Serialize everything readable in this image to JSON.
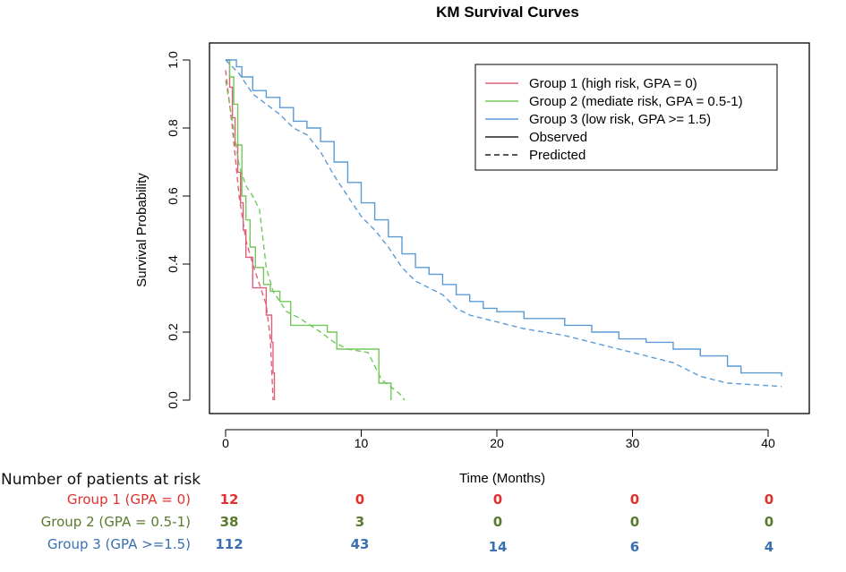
{
  "chart_data": {
    "type": "line",
    "title": "KM Survival Curves",
    "xlabel": "Time (Months)",
    "ylabel": "Survival Probability",
    "xlim": [
      0,
      42
    ],
    "ylim": [
      0,
      1.0
    ],
    "x_ticks": [
      0,
      10,
      20,
      30,
      40
    ],
    "y_ticks": [
      0.0,
      0.2,
      0.4,
      0.6,
      0.8,
      1.0
    ],
    "x_tick_labels": [
      "0",
      "10",
      "20",
      "30",
      "40"
    ],
    "y_tick_labels": [
      "0.0",
      "0.2",
      "0.4",
      "0.6",
      "0.8",
      "1.0"
    ],
    "legend": {
      "position": "top-right",
      "entries": [
        {
          "label": "Group 1 (high risk, GPA = 0)",
          "style": "solid",
          "color": "#e0607a"
        },
        {
          "label": "Group 2 (mediate risk, GPA = 0.5-1)",
          "style": "solid",
          "color": "#72c85a"
        },
        {
          "label": "Group 3 (low risk, GPA >= 1.5)",
          "style": "solid",
          "color": "#5b9bd5"
        },
        {
          "label": "Observed",
          "style": "solid",
          "color": "#222222"
        },
        {
          "label": "Predicted",
          "style": "dashed",
          "color": "#222222"
        }
      ]
    },
    "series": [
      {
        "name": "Group 1 Observed",
        "group": 1,
        "kind": "observed",
        "color": "#e0607a",
        "step": true,
        "points": [
          [
            0,
            1.0
          ],
          [
            0.3,
            0.92
          ],
          [
            0.5,
            0.83
          ],
          [
            0.7,
            0.75
          ],
          [
            0.9,
            0.67
          ],
          [
            1.1,
            0.58
          ],
          [
            1.3,
            0.5
          ],
          [
            1.5,
            0.42
          ],
          [
            2.0,
            0.33
          ],
          [
            3.0,
            0.25
          ],
          [
            3.4,
            0.17
          ],
          [
            3.5,
            0.08
          ],
          [
            3.6,
            0.0
          ]
        ]
      },
      {
        "name": "Group 1 Predicted",
        "group": 1,
        "kind": "predicted",
        "color": "#e0607a",
        "step": false,
        "points": [
          [
            0,
            0.97
          ],
          [
            0.5,
            0.8
          ],
          [
            1.0,
            0.6
          ],
          [
            1.5,
            0.47
          ],
          [
            2.0,
            0.4
          ],
          [
            2.5,
            0.34
          ],
          [
            3.0,
            0.28
          ],
          [
            3.3,
            0.18
          ],
          [
            3.5,
            0.0
          ]
        ]
      },
      {
        "name": "Group 2 Observed",
        "group": 2,
        "kind": "observed",
        "color": "#72c85a",
        "step": true,
        "points": [
          [
            0,
            1.0
          ],
          [
            0.3,
            0.95
          ],
          [
            0.6,
            0.87
          ],
          [
            0.9,
            0.75
          ],
          [
            1.2,
            0.6
          ],
          [
            1.5,
            0.53
          ],
          [
            1.8,
            0.45
          ],
          [
            2.2,
            0.39
          ],
          [
            2.8,
            0.34
          ],
          [
            3.3,
            0.32
          ],
          [
            4.0,
            0.29
          ],
          [
            4.8,
            0.22
          ],
          [
            7.5,
            0.2
          ],
          [
            8.2,
            0.15
          ],
          [
            11.3,
            0.05
          ],
          [
            12.2,
            0.0
          ]
        ]
      },
      {
        "name": "Group 2 Predicted",
        "group": 2,
        "kind": "predicted",
        "color": "#72c85a",
        "step": false,
        "points": [
          [
            0,
            0.94
          ],
          [
            0.5,
            0.82
          ],
          [
            1.0,
            0.69
          ],
          [
            1.5,
            0.63
          ],
          [
            2.0,
            0.6
          ],
          [
            2.5,
            0.56
          ],
          [
            3.0,
            0.39
          ],
          [
            3.5,
            0.32
          ],
          [
            4.5,
            0.26
          ],
          [
            5.5,
            0.24
          ],
          [
            7.0,
            0.2
          ],
          [
            8.0,
            0.17
          ],
          [
            9.0,
            0.15
          ],
          [
            10.5,
            0.14
          ],
          [
            11.5,
            0.06
          ],
          [
            12.8,
            0.02
          ],
          [
            13.2,
            0.0
          ]
        ]
      },
      {
        "name": "Group 3 Observed",
        "group": 3,
        "kind": "observed",
        "color": "#5b9bd5",
        "step": true,
        "points": [
          [
            0,
            1.0
          ],
          [
            0.8,
            0.98
          ],
          [
            1.2,
            0.95
          ],
          [
            2.0,
            0.91
          ],
          [
            3.0,
            0.89
          ],
          [
            4.0,
            0.86
          ],
          [
            5.0,
            0.82
          ],
          [
            6.0,
            0.8
          ],
          [
            7.0,
            0.76
          ],
          [
            8.0,
            0.7
          ],
          [
            9.0,
            0.64
          ],
          [
            10.0,
            0.58
          ],
          [
            11.0,
            0.53
          ],
          [
            12.0,
            0.48
          ],
          [
            13.0,
            0.43
          ],
          [
            14.0,
            0.39
          ],
          [
            15.0,
            0.37
          ],
          [
            16.0,
            0.34
          ],
          [
            17.0,
            0.31
          ],
          [
            18.0,
            0.29
          ],
          [
            19.0,
            0.27
          ],
          [
            20.0,
            0.26
          ],
          [
            22.0,
            0.24
          ],
          [
            25.0,
            0.22
          ],
          [
            27.0,
            0.2
          ],
          [
            29.0,
            0.18
          ],
          [
            31.0,
            0.17
          ],
          [
            33.0,
            0.15
          ],
          [
            35.0,
            0.13
          ],
          [
            37.0,
            0.1
          ],
          [
            38.0,
            0.08
          ],
          [
            41.0,
            0.07
          ]
        ]
      },
      {
        "name": "Group 3 Predicted",
        "group": 3,
        "kind": "predicted",
        "color": "#5b9bd5",
        "step": false,
        "points": [
          [
            0,
            1.0
          ],
          [
            1.0,
            0.96
          ],
          [
            2.0,
            0.9
          ],
          [
            3.0,
            0.87
          ],
          [
            4.0,
            0.84
          ],
          [
            5.0,
            0.8
          ],
          [
            6.0,
            0.78
          ],
          [
            7.0,
            0.73
          ],
          [
            8.0,
            0.66
          ],
          [
            9.0,
            0.6
          ],
          [
            10.0,
            0.54
          ],
          [
            11.0,
            0.5
          ],
          [
            12.0,
            0.45
          ],
          [
            13.0,
            0.39
          ],
          [
            14.0,
            0.35
          ],
          [
            15.0,
            0.33
          ],
          [
            16.0,
            0.31
          ],
          [
            17.0,
            0.27
          ],
          [
            18.0,
            0.25
          ],
          [
            20.0,
            0.23
          ],
          [
            22.0,
            0.21
          ],
          [
            25.0,
            0.19
          ],
          [
            27.0,
            0.17
          ],
          [
            29.0,
            0.15
          ],
          [
            31.0,
            0.13
          ],
          [
            33.0,
            0.11
          ],
          [
            35.0,
            0.07
          ],
          [
            37.0,
            0.05
          ],
          [
            41.0,
            0.04
          ]
        ]
      }
    ],
    "risk_table": {
      "heading": "Number of patients at risk",
      "timepoints": [
        0,
        10,
        20,
        30,
        40
      ],
      "rows": [
        {
          "label": "Group 1 (GPA = 0)",
          "color": "#e0312f",
          "counts": [
            "12",
            "0",
            "0",
            "0",
            "0"
          ]
        },
        {
          "label": "Group 2 (GPA = 0.5-1)",
          "color": "#5a7a2e",
          "counts": [
            "38",
            "3",
            "0",
            "0",
            "0"
          ]
        },
        {
          "label": "Group 3 (GPA >=1.5)",
          "color": "#3a70b0",
          "counts": [
            "112",
            "43",
            "14",
            "6",
            "4"
          ]
        }
      ]
    }
  }
}
